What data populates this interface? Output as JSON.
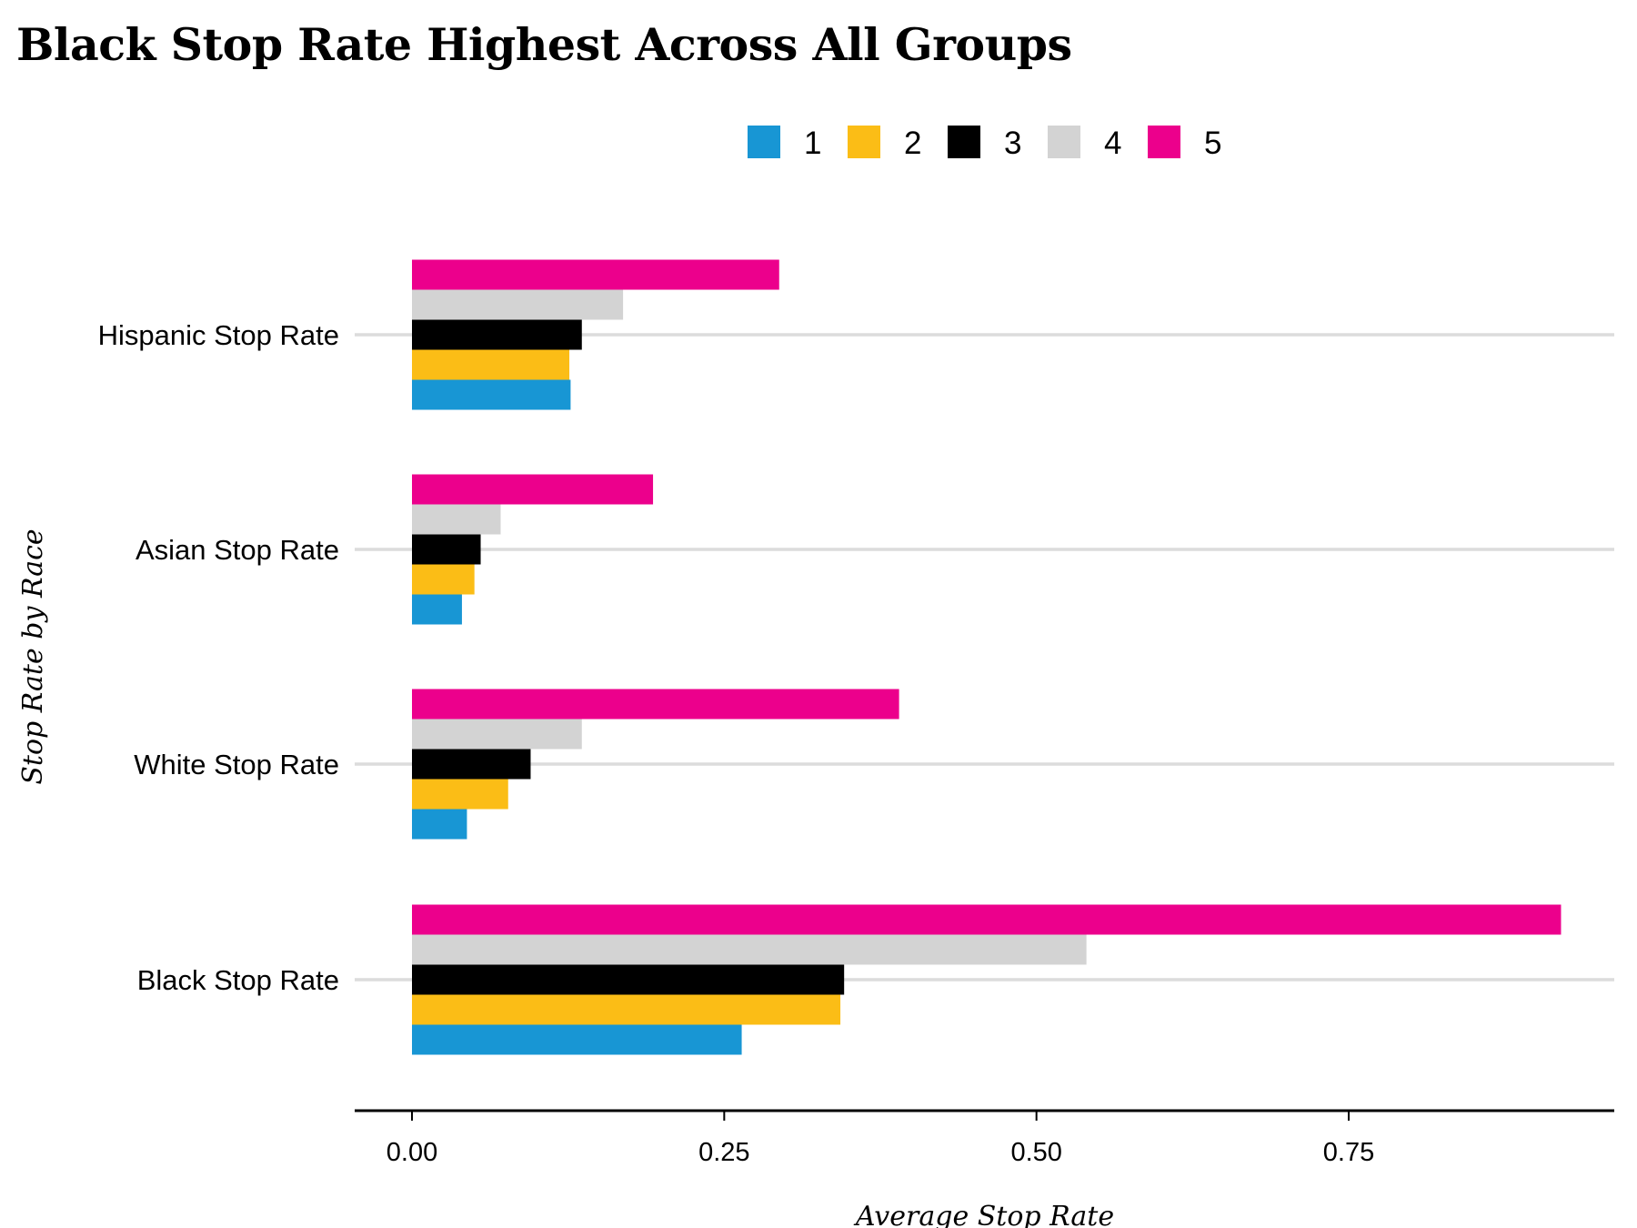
{
  "chart_data": {
    "type": "bar",
    "orientation": "horizontal",
    "title": "Black Stop Rate Highest Across All Groups",
    "xlabel": "Average Stop Rate",
    "ylabel": "Stop Rate by Race",
    "categories": [
      "Hispanic Stop Rate",
      "Asian Stop Rate",
      "White Stop Rate",
      "Black Stop Rate"
    ],
    "xlim": [
      0,
      0.96
    ],
    "xticks": [
      0,
      0.25,
      0.5,
      0.75
    ],
    "xtick_labels": [
      "0.00",
      "0.25",
      "0.50",
      "0.75"
    ],
    "grid": "horizontal at categories",
    "legend": "top",
    "series": [
      {
        "name": "1",
        "color": "#1896d4",
        "values": [
          0.127,
          0.04,
          0.044,
          0.264
        ]
      },
      {
        "name": "2",
        "color": "#fbbd16",
        "values": [
          0.126,
          0.05,
          0.077,
          0.343
        ]
      },
      {
        "name": "3",
        "color": "#000000",
        "values": [
          0.136,
          0.055,
          0.095,
          0.346
        ]
      },
      {
        "name": "4",
        "color": "#d3d3d3",
        "values": [
          0.169,
          0.071,
          0.136,
          0.54
        ]
      },
      {
        "name": "5",
        "color": "#ec008c",
        "values": [
          0.294,
          0.193,
          0.39,
          0.92
        ]
      }
    ]
  }
}
